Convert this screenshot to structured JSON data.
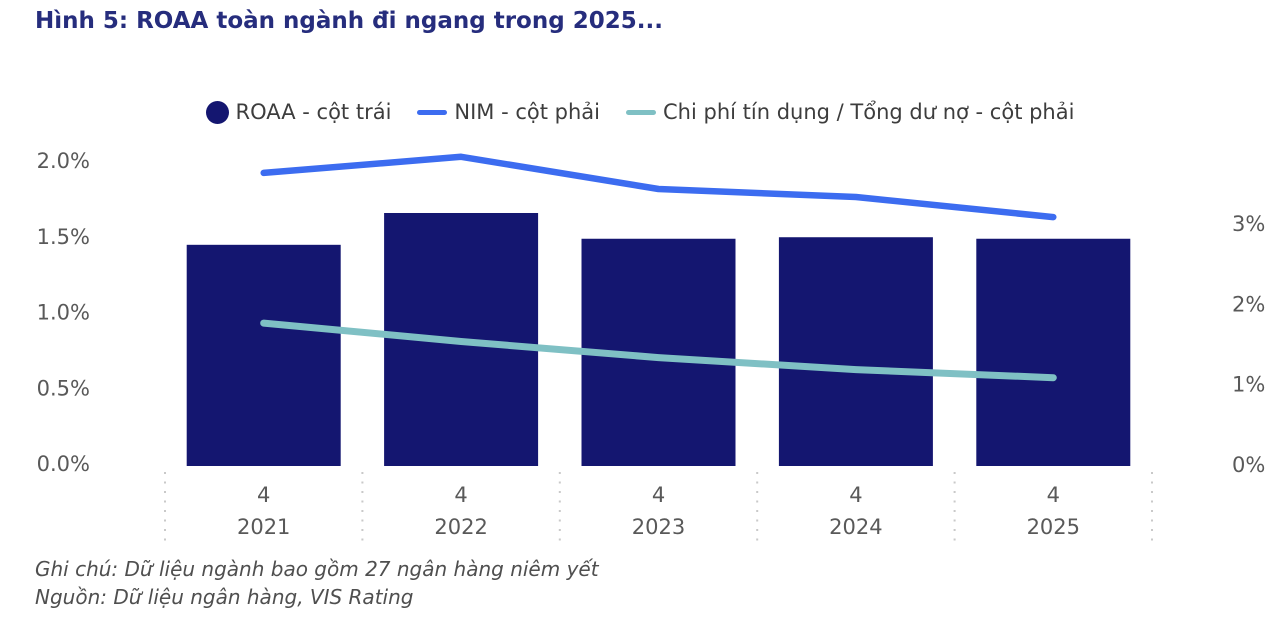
{
  "title": "Hình 5: ROAA toàn ngành đi ngang trong 2025...",
  "title_color": "#262d7d",
  "legend": [
    {
      "label": "ROAA - cột trái",
      "marker": "circle",
      "color": "#141670"
    },
    {
      "label": "NIM - cột phải",
      "marker": "line",
      "color": "#3c6cf0"
    },
    {
      "label": "Chi phí tín dụng / Tổng dư nợ - cột phải",
      "marker": "line",
      "color": "#7fc0c4"
    }
  ],
  "notes": {
    "note": "Ghi chú: Dữ liệu ngành bao gồm 27 ngân hàng niêm yết",
    "source": "Nguồn: Dữ liệu ngân hàng, VIS Rating"
  },
  "chart_data": {
    "type": "bar",
    "subtype": "bar+line combo, dual axis",
    "categories": [
      {
        "quarter": "4",
        "year": "2021"
      },
      {
        "quarter": "4",
        "year": "2022"
      },
      {
        "quarter": "4",
        "year": "2023"
      },
      {
        "quarter": "4",
        "year": "2024"
      },
      {
        "quarter": "4",
        "year": "2025"
      }
    ],
    "series": [
      {
        "name": "ROAA - cột trái",
        "type": "bar",
        "axis": "left",
        "color": "#141670",
        "unit": "%",
        "values": [
          1.46,
          1.67,
          1.5,
          1.51,
          1.5
        ]
      },
      {
        "name": "NIM - cột phải",
        "type": "line",
        "axis": "right",
        "color": "#3c6cf0",
        "unit": "%",
        "values": [
          3.65,
          3.85,
          3.45,
          3.35,
          3.1
        ]
      },
      {
        "name": "Chi phí tín dụng / Tổng dư nợ - cột phải",
        "type": "line",
        "axis": "right",
        "color": "#7fc0c4",
        "unit": "%",
        "values": [
          1.78,
          1.55,
          1.35,
          1.2,
          1.1
        ]
      }
    ],
    "left_axis": {
      "ticks": [
        {
          "label": "2.0%",
          "value": 2.0
        },
        {
          "label": "1.5%",
          "value": 1.5
        },
        {
          "label": "1.0%",
          "value": 1.0
        },
        {
          "label": "0.5%",
          "value": 0.5
        },
        {
          "label": "0.0%",
          "value": 0.0
        }
      ],
      "range": [
        0,
        2.0
      ]
    },
    "right_axis": {
      "ticks": [
        {
          "label": "3%",
          "value": 3
        },
        {
          "label": "2%",
          "value": 2
        },
        {
          "label": "1%",
          "value": 1
        },
        {
          "label": "0%",
          "value": 0
        }
      ],
      "range": [
        0,
        4
      ]
    },
    "grid": "no horizontal gridlines; dotted vertical category separators below axis",
    "legend_position": "top-center",
    "axis_text_color": "#595959",
    "separator_color": "#c9c9c9"
  }
}
